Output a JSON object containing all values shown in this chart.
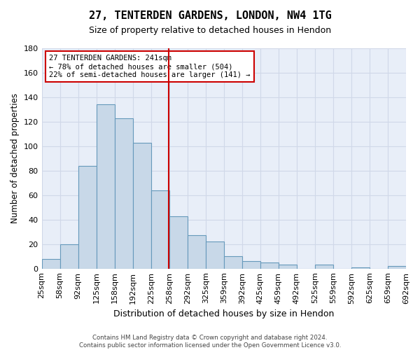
{
  "title": "27, TENTERDEN GARDENS, LONDON, NW4 1TG",
  "subtitle": "Size of property relative to detached houses in Hendon",
  "xlabel": "Distribution of detached houses by size in Hendon",
  "ylabel": "Number of detached properties",
  "bin_labels": [
    "25sqm",
    "58sqm",
    "92sqm",
    "125sqm",
    "158sqm",
    "192sqm",
    "225sqm",
    "258sqm",
    "292sqm",
    "325sqm",
    "359sqm",
    "392sqm",
    "425sqm",
    "459sqm",
    "492sqm",
    "525sqm",
    "559sqm",
    "592sqm",
    "625sqm",
    "659sqm",
    "692sqm"
  ],
  "bar_values": [
    8,
    20,
    84,
    134,
    123,
    103,
    64,
    43,
    27,
    22,
    10,
    6,
    5,
    3,
    0,
    3,
    0,
    1,
    0,
    2
  ],
  "bar_color": "#c8d8e8",
  "bar_edge_color": "#6699bb",
  "red_line_x": 6.47,
  "annotation_text1": "27 TENTERDEN GARDENS: 241sqm",
  "annotation_text2": "← 78% of detached houses are smaller (504)",
  "annotation_text3": "22% of semi-detached houses are larger (141) →",
  "annotation_box_color": "#ffffff",
  "annotation_box_edge_color": "#cc0000",
  "vline_color": "#cc0000",
  "footer1": "Contains HM Land Registry data © Crown copyright and database right 2024.",
  "footer2": "Contains public sector information licensed under the Open Government Licence v3.0.",
  "ylim": [
    0,
    180
  ],
  "yticks": [
    0,
    20,
    40,
    60,
    80,
    100,
    120,
    140,
    160,
    180
  ],
  "grid_color": "#d0d8e8",
  "bg_color": "#e8eef8"
}
